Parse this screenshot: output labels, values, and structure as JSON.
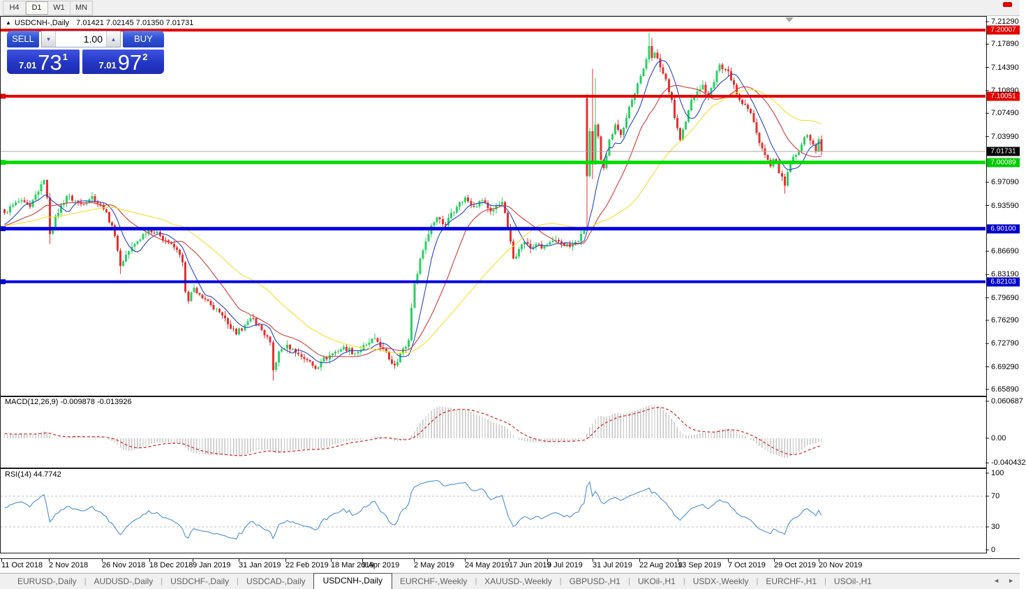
{
  "toolbar": {
    "timeframes": [
      "H4",
      "D1",
      "W1",
      "MN"
    ],
    "active_timeframe": "D1"
  },
  "chart_header": {
    "symbol_title": "USDCNH-,Daily",
    "ohlc_text": "7.01421 7.02145 7.01350 7.01731"
  },
  "icons": {
    "collapse": "▲",
    "spin_down": "▾",
    "spin_up": "▴",
    "tab_separator": "|",
    "scroll_left": "◄",
    "scroll_right": "►"
  },
  "trade_panel": {
    "sell_label": "SELL",
    "buy_label": "BUY",
    "volume": "1.00",
    "sell_price_small": "7.01",
    "sell_price_big": "73",
    "sell_price_sup": "1",
    "buy_price_small": "7.01",
    "buy_price_big": "97",
    "buy_price_sup": "2"
  },
  "indicator_labels": {
    "macd": "MACD(12,26,9) -0.009878 -0.013926",
    "rsi": "RSI(14) 44.7742"
  },
  "price_axis_ticks": [
    "7.21290",
    "7.17890",
    "7.14390",
    "7.10890",
    "7.07490",
    "7.03990",
    "6.97090",
    "6.93590",
    "6.86690",
    "6.83190",
    "6.79690",
    "6.76290",
    "6.72790",
    "6.69290",
    "6.65890"
  ],
  "macd_axis_ticks": [
    "0.060687",
    "0.00",
    "-0.040432"
  ],
  "rsi_axis_ticks": [
    "100",
    "70",
    "30",
    "0"
  ],
  "date_axis_labels": [
    "11 Oct 2018",
    "2 Nov 2018",
    "26 Nov 2018",
    "18 Dec 2018",
    "9 Jan 2019",
    "31 Jan 2019",
    "22 Feb 2019",
    "18 Mar 2019",
    "9 Apr 2019",
    "2 May 2019",
    "24 May 2019",
    "17 Jun 2019",
    "9 Jul 2019",
    "31 Jul 2019",
    "22 Aug 2019",
    "13 Sep 2019",
    "7 Oct 2019",
    "29 Oct 2019",
    "20 Nov 2019"
  ],
  "tabs": [
    "EURUSD-,Daily",
    "AUDUSD-,Daily",
    "USDCHF-,Daily",
    "USDCAD-,Daily",
    "USDCNH-,Daily",
    "EURCHF-,Weekly",
    "XAUUSD-,Weekly",
    "GBPUSD-,H1",
    "UKOil-,H1",
    "USDX-,Weekly",
    "EURCHF-,H1",
    "USOil-,H1"
  ],
  "active_tab": "USDCNH-,Daily",
  "chart_data": {
    "type": "candlestick",
    "symbol": "USDCNH-",
    "timeframe": "Daily",
    "title": "USDCNH-,Daily",
    "ohlc_current": {
      "open": 7.01421,
      "high": 7.02145,
      "low": 7.0135,
      "close": 7.01731
    },
    "bid": 7.0173,
    "ask": 7.0197,
    "n_candles": 290,
    "date_start": "11 Oct 2018",
    "date_end": "20 Nov 2019",
    "price_axis_range": [
      6.6589,
      7.2129
    ],
    "candle_up_color": "#2bd063",
    "candle_down_color": "#e53030",
    "close_anchors": [
      [
        0,
        6.925
      ],
      [
        5,
        6.942
      ],
      [
        9,
        6.934
      ],
      [
        13,
        6.968
      ],
      [
        14,
        6.974
      ],
      [
        15,
        6.948
      ],
      [
        16,
        6.893
      ],
      [
        18,
        6.92
      ],
      [
        22,
        6.95
      ],
      [
        27,
        6.938
      ],
      [
        31,
        6.95
      ],
      [
        35,
        6.93
      ],
      [
        38,
        6.906
      ],
      [
        40,
        6.868
      ],
      [
        41,
        6.845
      ],
      [
        43,
        6.862
      ],
      [
        47,
        6.882
      ],
      [
        51,
        6.902
      ],
      [
        55,
        6.89
      ],
      [
        59,
        6.878
      ],
      [
        62,
        6.862
      ],
      [
        63,
        6.85
      ],
      [
        64,
        6.806
      ],
      [
        65,
        6.792
      ],
      [
        67,
        6.812
      ],
      [
        70,
        6.796
      ],
      [
        73,
        6.786
      ],
      [
        76,
        6.775
      ],
      [
        79,
        6.757
      ],
      [
        82,
        6.742
      ],
      [
        85,
        6.756
      ],
      [
        88,
        6.766
      ],
      [
        91,
        6.748
      ],
      [
        94,
        6.73
      ],
      [
        95,
        6.688
      ],
      [
        97,
        6.716
      ],
      [
        100,
        6.726
      ],
      [
        103,
        6.714
      ],
      [
        107,
        6.703
      ],
      [
        110,
        6.69
      ],
      [
        112,
        6.701
      ],
      [
        116,
        6.713
      ],
      [
        120,
        6.723
      ],
      [
        124,
        6.713
      ],
      [
        128,
        6.726
      ],
      [
        131,
        6.736
      ],
      [
        134,
        6.72
      ],
      [
        136,
        6.704
      ],
      [
        138,
        6.695
      ],
      [
        140,
        6.713
      ],
      [
        142,
        6.723
      ],
      [
        143,
        6.733
      ],
      [
        144,
        6.782
      ],
      [
        145,
        6.818
      ],
      [
        147,
        6.856
      ],
      [
        149,
        6.882
      ],
      [
        151,
        6.906
      ],
      [
        153,
        6.918
      ],
      [
        156,
        6.906
      ],
      [
        158,
        6.925
      ],
      [
        160,
        6.934
      ],
      [
        163,
        6.948
      ],
      [
        166,
        6.934
      ],
      [
        169,
        6.944
      ],
      [
        172,
        6.927
      ],
      [
        175,
        6.937
      ],
      [
        176,
        6.941
      ],
      [
        178,
        6.902
      ],
      [
        180,
        6.856
      ],
      [
        182,
        6.87
      ],
      [
        184,
        6.881
      ],
      [
        186,
        6.871
      ],
      [
        188,
        6.878
      ],
      [
        190,
        6.871
      ],
      [
        192,
        6.877
      ],
      [
        196,
        6.882
      ],
      [
        200,
        6.874
      ],
      [
        203,
        6.882
      ],
      [
        205,
        6.898
      ],
      [
        206,
        6.98
      ],
      [
        207,
        7.048
      ],
      [
        208,
        6.998
      ],
      [
        209,
        7.058
      ],
      [
        210,
        7.04
      ],
      [
        211,
        7.005
      ],
      [
        212,
        6.992
      ],
      [
        214,
        7.035
      ],
      [
        216,
        7.058
      ],
      [
        218,
        7.042
      ],
      [
        220,
        7.068
      ],
      [
        222,
        7.095
      ],
      [
        224,
        7.12
      ],
      [
        226,
        7.142
      ],
      [
        227,
        7.156
      ],
      [
        228,
        7.176
      ],
      [
        229,
        7.158
      ],
      [
        230,
        7.166
      ],
      [
        232,
        7.144
      ],
      [
        234,
        7.126
      ],
      [
        236,
        7.095
      ],
      [
        237,
        7.068
      ],
      [
        239,
        7.035
      ],
      [
        241,
        7.062
      ],
      [
        243,
        7.095
      ],
      [
        245,
        7.108
      ],
      [
        247,
        7.118
      ],
      [
        249,
        7.1
      ],
      [
        251,
        7.122
      ],
      [
        253,
        7.148
      ],
      [
        256,
        7.138
      ],
      [
        258,
        7.118
      ],
      [
        260,
        7.095
      ],
      [
        262,
        7.088
      ],
      [
        264,
        7.075
      ],
      [
        266,
        7.045
      ],
      [
        268,
        7.022
      ],
      [
        269,
        7.012
      ],
      [
        271,
        6.995
      ],
      [
        272,
        7.006
      ],
      [
        274,
        6.985
      ],
      [
        276,
        6.966
      ],
      [
        278,
        7.0
      ],
      [
        280,
        7.012
      ],
      [
        282,
        7.028
      ],
      [
        284,
        7.042
      ],
      [
        286,
        7.028
      ],
      [
        287,
        7.018
      ],
      [
        288,
        7.036
      ],
      [
        289,
        7.01731
      ]
    ],
    "open_overrides": [
      [
        206,
        7.098
      ]
    ],
    "wick_overrides": [
      [
        16,
        6.955,
        6.878
      ],
      [
        41,
        6.872,
        6.833
      ],
      [
        95,
        6.733,
        6.672
      ],
      [
        206,
        7.104,
        6.902
      ],
      [
        208,
        7.142,
        6.976
      ],
      [
        209,
        7.128,
        null
      ],
      [
        228,
        7.1965,
        null
      ],
      [
        229,
        7.188,
        null
      ],
      [
        276,
        null,
        6.954
      ]
    ],
    "hlines": [
      {
        "price": 7.20007,
        "label": "7.20007",
        "color": "#e60000",
        "label_bg": "#e60000",
        "width": 4,
        "handle": false
      },
      {
        "price": 7.10051,
        "label": "7.10051",
        "color": "#e60000",
        "label_bg": "#e60000",
        "width": 4,
        "handle": true
      },
      {
        "price": 7.01731,
        "label": "7.01731",
        "color": "#a8a8a8",
        "label_bg": "#000000",
        "width": 1,
        "handle": false
      },
      {
        "price": 7.00089,
        "label": "7.00089",
        "color": "#00dd00",
        "label_bg": "#00cc00",
        "width": 5,
        "handle": true
      },
      {
        "price": 6.901,
        "label": "6.90100",
        "color": "#0000e0",
        "label_bg": "#0000cc",
        "width": 5,
        "handle": true
      },
      {
        "price": 6.82103,
        "label": "6.82103",
        "color": "#0000e0",
        "label_bg": "#0000cc",
        "width": 4,
        "handle": true
      }
    ],
    "moving_averages": [
      {
        "period": 8,
        "color": "#2946c8"
      },
      {
        "period": 20,
        "color": "#d23c3c"
      },
      {
        "period": 45,
        "color": "#f6df25"
      }
    ],
    "macd": {
      "fast": 12,
      "slow": 26,
      "signal": 9,
      "current": -0.009878,
      "current_signal": -0.013926,
      "axis_min": -0.040432,
      "axis_max": 0.060687,
      "hist_color": "#c6c6c6",
      "signal_color": "#d22424"
    },
    "rsi": {
      "period": 14,
      "current": 44.7742,
      "levels": [
        30,
        70
      ],
      "color": "#4a90d0",
      "axis_min": 0,
      "axis_max": 100,
      "level_color": "#c0c0c0"
    },
    "date_tick_x": [
      2,
      70,
      146,
      214,
      276,
      342,
      409,
      474,
      519,
      593,
      666,
      729,
      784,
      849,
      916,
      971,
      1043,
      1109,
      1173
    ]
  }
}
